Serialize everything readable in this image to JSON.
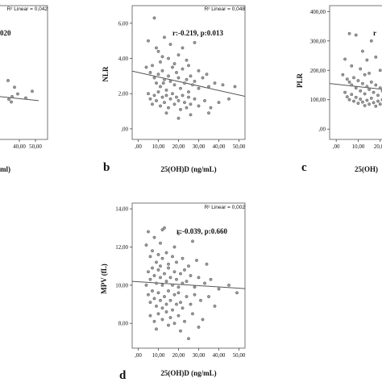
{
  "chart_data": [
    {
      "id": "a",
      "type": "scatter",
      "panel_letter": "",
      "ylabel": "",
      "xlabel": "ml)",
      "stat_text": "020",
      "r2_text": "R² Linear = 0,042",
      "x_ticks": [
        "40,00",
        "50,00"
      ],
      "y_ticks": [],
      "xlim": [
        0,
        52
      ],
      "ylim": [
        0,
        10
      ],
      "fit_line": {
        "x": [
          0,
          52
        ],
        "y": [
          3.55,
          2.9
        ]
      },
      "points": [
        {
          "x": 35.5,
          "y": 3.2
        },
        {
          "x": 44.0,
          "y": 3.1
        },
        {
          "x": 48.0,
          "y": 3.6
        },
        {
          "x": 37.0,
          "y": 3.9
        },
        {
          "x": 33.5,
          "y": 3.0
        },
        {
          "x": 33.0,
          "y": 4.4
        },
        {
          "x": 39.0,
          "y": 3.4
        },
        {
          "x": 35.0,
          "y": 2.8
        }
      ]
    },
    {
      "id": "b",
      "type": "scatter",
      "panel_letter": "b",
      "ylabel": "NLR",
      "xlabel": "25(OH)D (ng/mL)",
      "stat_text": "r:-0.219, p:0.013",
      "r2_text": "R² Linear = 0,048",
      "x_ticks": [
        ",00",
        "10,00",
        "20,00",
        "30,00",
        "40,00",
        "50,00"
      ],
      "x_tick_values": [
        0,
        10,
        20,
        30,
        40,
        50
      ],
      "y_ticks": [
        ",00",
        "2,00",
        "4,00",
        "6,00"
      ],
      "y_tick_values": [
        0,
        2,
        4,
        6
      ],
      "xlim": [
        -3,
        53
      ],
      "ylim": [
        -0.6,
        7.0
      ],
      "fit_line": {
        "x": [
          -3,
          53
        ],
        "y": [
          3.28,
          1.85
        ]
      },
      "points": [
        {
          "x": 8.0,
          "y": 6.3
        },
        {
          "x": 13.0,
          "y": 5.2
        },
        {
          "x": 5.0,
          "y": 5.0
        },
        {
          "x": 10.0,
          "y": 4.4
        },
        {
          "x": 12.0,
          "y": 4.1
        },
        {
          "x": 15.0,
          "y": 4.0
        },
        {
          "x": 16.0,
          "y": 4.8
        },
        {
          "x": 20.0,
          "y": 4.2
        },
        {
          "x": 24.0,
          "y": 3.9
        },
        {
          "x": 9.0,
          "y": 4.6
        },
        {
          "x": 22.0,
          "y": 4.6
        },
        {
          "x": 28.0,
          "y": 4.9
        },
        {
          "x": 4.0,
          "y": 3.5
        },
        {
          "x": 6.0,
          "y": 3.2
        },
        {
          "x": 7.0,
          "y": 3.6
        },
        {
          "x": 8.0,
          "y": 2.9
        },
        {
          "x": 9.0,
          "y": 2.6
        },
        {
          "x": 10.0,
          "y": 3.1
        },
        {
          "x": 11.0,
          "y": 2.4
        },
        {
          "x": 12.0,
          "y": 3.3
        },
        {
          "x": 13.0,
          "y": 2.8
        },
        {
          "x": 14.0,
          "y": 2.2
        },
        {
          "x": 15.0,
          "y": 3.0
        },
        {
          "x": 16.0,
          "y": 2.7
        },
        {
          "x": 17.0,
          "y": 3.5
        },
        {
          "x": 18.0,
          "y": 2.5
        },
        {
          "x": 19.0,
          "y": 3.2
        },
        {
          "x": 20.0,
          "y": 2.9
        },
        {
          "x": 21.0,
          "y": 2.3
        },
        {
          "x": 22.0,
          "y": 3.4
        },
        {
          "x": 23.0,
          "y": 2.6
        },
        {
          "x": 24.0,
          "y": 2.8
        },
        {
          "x": 25.0,
          "y": 2.1
        },
        {
          "x": 26.0,
          "y": 3.0
        },
        {
          "x": 27.0,
          "y": 2.5
        },
        {
          "x": 28.0,
          "y": 2.7
        },
        {
          "x": 30.0,
          "y": 2.3
        },
        {
          "x": 32.0,
          "y": 2.9
        },
        {
          "x": 35.0,
          "y": 2.4
        },
        {
          "x": 38.0,
          "y": 2.6
        },
        {
          "x": 42.0,
          "y": 2.5
        },
        {
          "x": 48.0,
          "y": 2.4
        },
        {
          "x": 5.0,
          "y": 2.0
        },
        {
          "x": 6.0,
          "y": 1.7
        },
        {
          "x": 7.0,
          "y": 1.4
        },
        {
          "x": 8.0,
          "y": 1.9
        },
        {
          "x": 9.0,
          "y": 1.6
        },
        {
          "x": 10.0,
          "y": 2.1
        },
        {
          "x": 11.0,
          "y": 1.3
        },
        {
          "x": 12.0,
          "y": 1.8
        },
        {
          "x": 13.0,
          "y": 1.5
        },
        {
          "x": 14.0,
          "y": 1.9
        },
        {
          "x": 15.0,
          "y": 1.2
        },
        {
          "x": 16.0,
          "y": 1.7
        },
        {
          "x": 17.0,
          "y": 2.0
        },
        {
          "x": 18.0,
          "y": 1.4
        },
        {
          "x": 19.0,
          "y": 1.8
        },
        {
          "x": 20.0,
          "y": 1.6
        },
        {
          "x": 21.0,
          "y": 1.1
        },
        {
          "x": 22.0,
          "y": 1.9
        },
        {
          "x": 23.0,
          "y": 1.5
        },
        {
          "x": 24.0,
          "y": 1.2
        },
        {
          "x": 25.0,
          "y": 1.8
        },
        {
          "x": 26.0,
          "y": 1.4
        },
        {
          "x": 28.0,
          "y": 1.7
        },
        {
          "x": 30.0,
          "y": 1.3
        },
        {
          "x": 33.0,
          "y": 1.6
        },
        {
          "x": 36.0,
          "y": 1.2
        },
        {
          "x": 40.0,
          "y": 1.5
        },
        {
          "x": 45.0,
          "y": 1.7
        },
        {
          "x": 14.0,
          "y": 0.9
        },
        {
          "x": 20.0,
          "y": 0.6
        },
        {
          "x": 26.0,
          "y": 0.8
        },
        {
          "x": 35.0,
          "y": 0.9
        },
        {
          "x": 11.0,
          "y": 3.8
        },
        {
          "x": 18.0,
          "y": 3.7
        },
        {
          "x": 25.0,
          "y": 3.6
        },
        {
          "x": 30.0,
          "y": 3.3
        },
        {
          "x": 34.0,
          "y": 3.1
        },
        {
          "x": 12.5,
          "y": 2.6
        }
      ]
    },
    {
      "id": "c",
      "type": "scatter",
      "panel_letter": "c",
      "ylabel": "PLR",
      "xlabel": "25(OH)",
      "stat_text": "r",
      "r2_text": "",
      "x_ticks": [
        ",00",
        "10,00",
        "20,00"
      ],
      "x_tick_values": [
        0,
        10,
        20
      ],
      "y_ticks": [
        ",00",
        "100,00",
        "200,00",
        "300,00",
        "400,00"
      ],
      "y_tick_values": [
        0,
        100,
        200,
        300,
        400
      ],
      "xlim": [
        -3,
        30
      ],
      "ylim": [
        -35,
        420
      ],
      "fit_line": {
        "x": [
          -3,
          30
        ],
        "y": [
          155,
          128
        ]
      },
      "points": [
        {
          "x": 6.0,
          "y": 325
        },
        {
          "x": 9.0,
          "y": 320
        },
        {
          "x": 16.0,
          "y": 300
        },
        {
          "x": 12.0,
          "y": 265
        },
        {
          "x": 4.0,
          "y": 238
        },
        {
          "x": 14.0,
          "y": 235
        },
        {
          "x": 18.0,
          "y": 245
        },
        {
          "x": 7.0,
          "y": 215
        },
        {
          "x": 11.0,
          "y": 205
        },
        {
          "x": 20.0,
          "y": 200
        },
        {
          "x": 3.0,
          "y": 185
        },
        {
          "x": 5.0,
          "y": 170
        },
        {
          "x": 6.0,
          "y": 160
        },
        {
          "x": 7.0,
          "y": 150
        },
        {
          "x": 8.0,
          "y": 175
        },
        {
          "x": 9.0,
          "y": 140
        },
        {
          "x": 10.0,
          "y": 165
        },
        {
          "x": 11.0,
          "y": 130
        },
        {
          "x": 12.0,
          "y": 155
        },
        {
          "x": 13.0,
          "y": 120
        },
        {
          "x": 14.0,
          "y": 145
        },
        {
          "x": 15.0,
          "y": 135
        },
        {
          "x": 16.0,
          "y": 160
        },
        {
          "x": 17.0,
          "y": 125
        },
        {
          "x": 18.0,
          "y": 150
        },
        {
          "x": 19.0,
          "y": 115
        },
        {
          "x": 20.0,
          "y": 140
        },
        {
          "x": 21.0,
          "y": 130
        },
        {
          "x": 22.0,
          "y": 110
        },
        {
          "x": 4.0,
          "y": 125
        },
        {
          "x": 5.0,
          "y": 110
        },
        {
          "x": 6.0,
          "y": 100
        },
        {
          "x": 7.0,
          "y": 118
        },
        {
          "x": 8.0,
          "y": 95
        },
        {
          "x": 9.0,
          "y": 108
        },
        {
          "x": 10.0,
          "y": 88
        },
        {
          "x": 11.0,
          "y": 102
        },
        {
          "x": 12.0,
          "y": 92
        },
        {
          "x": 13.0,
          "y": 80
        },
        {
          "x": 14.0,
          "y": 98
        },
        {
          "x": 15.0,
          "y": 85
        },
        {
          "x": 16.0,
          "y": 105
        },
        {
          "x": 17.0,
          "y": 90
        },
        {
          "x": 18.0,
          "y": 78
        },
        {
          "x": 19.0,
          "y": 95
        },
        {
          "x": 20.0,
          "y": 85
        },
        {
          "x": 21.0,
          "y": 100
        },
        {
          "x": 23.0,
          "y": 92
        },
        {
          "x": 25.0,
          "y": 130
        },
        {
          "x": 27.0,
          "y": 110
        },
        {
          "x": 26.0,
          "y": 150
        },
        {
          "x": 24.0,
          "y": 170
        },
        {
          "x": 13.0,
          "y": 185
        },
        {
          "x": 15.0,
          "y": 190
        },
        {
          "x": 26.0,
          "y": 62
        }
      ]
    },
    {
      "id": "d",
      "type": "scatter",
      "panel_letter": "d",
      "ylabel": "MPV (fL)",
      "xlabel": "25(OH)D (ng/mL)",
      "stat_text": "r:-0.039, p:0.660",
      "r2_text": "R² Linear = 0,002",
      "x_ticks": [
        ",00",
        "10,00",
        "20,00",
        "30,00",
        "40,00",
        "50,00"
      ],
      "x_tick_values": [
        0,
        10,
        20,
        30,
        40,
        50
      ],
      "y_ticks": [
        "8,00",
        "10,00",
        "12,00",
        "14,00"
      ],
      "y_tick_values": [
        8,
        10,
        12,
        14
      ],
      "xlim": [
        -3,
        53
      ],
      "ylim": [
        6.7,
        14.3
      ],
      "fit_line": {
        "x": [
          -3,
          53
        ],
        "y": [
          10.2,
          9.82
        ]
      },
      "points": [
        {
          "x": 5.0,
          "y": 12.8
        },
        {
          "x": 8.0,
          "y": 12.5
        },
        {
          "x": 12.0,
          "y": 12.9
        },
        {
          "x": 20.0,
          "y": 12.7
        },
        {
          "x": 13.0,
          "y": 13.0
        },
        {
          "x": 4.0,
          "y": 12.1
        },
        {
          "x": 6.0,
          "y": 11.5
        },
        {
          "x": 7.0,
          "y": 11.8
        },
        {
          "x": 9.0,
          "y": 11.2
        },
        {
          "x": 10.0,
          "y": 11.6
        },
        {
          "x": 11.0,
          "y": 11.0
        },
        {
          "x": 12.0,
          "y": 11.4
        },
        {
          "x": 14.0,
          "y": 11.7
        },
        {
          "x": 15.0,
          "y": 11.1
        },
        {
          "x": 17.0,
          "y": 11.5
        },
        {
          "x": 19.0,
          "y": 11.2
        },
        {
          "x": 22.0,
          "y": 11.4
        },
        {
          "x": 25.0,
          "y": 11.0
        },
        {
          "x": 29.0,
          "y": 11.3
        },
        {
          "x": 34.0,
          "y": 11.1
        },
        {
          "x": 5.0,
          "y": 10.7
        },
        {
          "x": 6.0,
          "y": 10.3
        },
        {
          "x": 7.0,
          "y": 10.9
        },
        {
          "x": 8.0,
          "y": 10.5
        },
        {
          "x": 9.0,
          "y": 10.1
        },
        {
          "x": 10.0,
          "y": 10.8
        },
        {
          "x": 11.0,
          "y": 10.4
        },
        {
          "x": 12.0,
          "y": 10.0
        },
        {
          "x": 13.0,
          "y": 10.6
        },
        {
          "x": 14.0,
          "y": 10.2
        },
        {
          "x": 15.0,
          "y": 10.9
        },
        {
          "x": 16.0,
          "y": 10.4
        },
        {
          "x": 17.0,
          "y": 10.0
        },
        {
          "x": 18.0,
          "y": 10.7
        },
        {
          "x": 19.0,
          "y": 10.3
        },
        {
          "x": 20.0,
          "y": 9.9
        },
        {
          "x": 21.0,
          "y": 10.6
        },
        {
          "x": 22.0,
          "y": 10.1
        },
        {
          "x": 23.0,
          "y": 10.8
        },
        {
          "x": 24.0,
          "y": 10.2
        },
        {
          "x": 26.0,
          "y": 10.5
        },
        {
          "x": 28.0,
          "y": 9.9
        },
        {
          "x": 30.0,
          "y": 10.4
        },
        {
          "x": 33.0,
          "y": 10.1
        },
        {
          "x": 36.0,
          "y": 10.3
        },
        {
          "x": 40.0,
          "y": 9.8
        },
        {
          "x": 45.0,
          "y": 10.0
        },
        {
          "x": 5.0,
          "y": 9.5
        },
        {
          "x": 6.0,
          "y": 9.1
        },
        {
          "x": 7.0,
          "y": 9.7
        },
        {
          "x": 8.0,
          "y": 9.3
        },
        {
          "x": 9.0,
          "y": 8.9
        },
        {
          "x": 10.0,
          "y": 9.6
        },
        {
          "x": 11.0,
          "y": 9.2
        },
        {
          "x": 12.0,
          "y": 8.8
        },
        {
          "x": 13.0,
          "y": 9.4
        },
        {
          "x": 14.0,
          "y": 9.0
        },
        {
          "x": 15.0,
          "y": 9.7
        },
        {
          "x": 16.0,
          "y": 9.2
        },
        {
          "x": 17.0,
          "y": 8.7
        },
        {
          "x": 18.0,
          "y": 9.5
        },
        {
          "x": 19.0,
          "y": 9.0
        },
        {
          "x": 20.0,
          "y": 9.6
        },
        {
          "x": 21.0,
          "y": 9.1
        },
        {
          "x": 22.0,
          "y": 8.8
        },
        {
          "x": 24.0,
          "y": 9.4
        },
        {
          "x": 26.0,
          "y": 9.0
        },
        {
          "x": 28.0,
          "y": 9.5
        },
        {
          "x": 31.0,
          "y": 9.2
        },
        {
          "x": 35.0,
          "y": 9.4
        },
        {
          "x": 38.0,
          "y": 8.9
        },
        {
          "x": 6.0,
          "y": 8.4
        },
        {
          "x": 8.0,
          "y": 8.1
        },
        {
          "x": 10.0,
          "y": 8.5
        },
        {
          "x": 12.0,
          "y": 8.2
        },
        {
          "x": 14.0,
          "y": 8.6
        },
        {
          "x": 16.0,
          "y": 8.3
        },
        {
          "x": 18.0,
          "y": 8.0
        },
        {
          "x": 20.0,
          "y": 8.4
        },
        {
          "x": 23.0,
          "y": 8.1
        },
        {
          "x": 27.0,
          "y": 8.5
        },
        {
          "x": 32.0,
          "y": 8.2
        },
        {
          "x": 9.0,
          "y": 7.7
        },
        {
          "x": 15.0,
          "y": 7.9
        },
        {
          "x": 21.0,
          "y": 7.6
        },
        {
          "x": 30.0,
          "y": 7.8
        },
        {
          "x": 25.0,
          "y": 7.2
        },
        {
          "x": 11.0,
          "y": 12.2
        },
        {
          "x": 18.0,
          "y": 12.0
        },
        {
          "x": 27.0,
          "y": 12.3
        },
        {
          "x": 4.0,
          "y": 10.0
        },
        {
          "x": 49.0,
          "y": 9.6
        }
      ]
    }
  ]
}
